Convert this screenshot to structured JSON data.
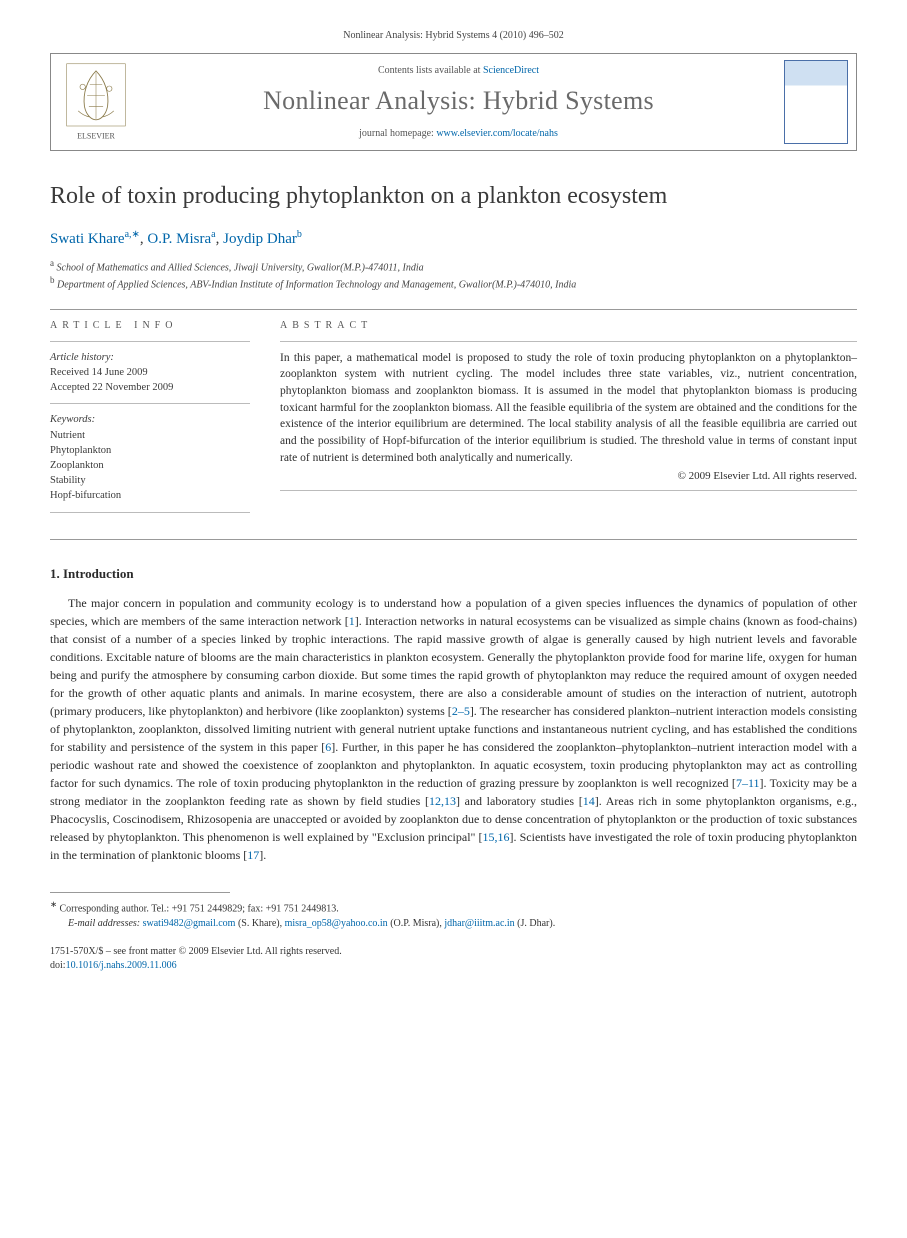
{
  "journal_ref": "Nonlinear Analysis: Hybrid Systems 4 (2010) 496–502",
  "header": {
    "contents_prefix": "Contents lists available at ",
    "contents_link": "ScienceDirect",
    "journal_title": "Nonlinear Analysis: Hybrid Systems",
    "homepage_prefix": "journal homepage: ",
    "homepage_link": "www.elsevier.com/locate/nahs",
    "publisher_name": "ELSEVIER"
  },
  "article": {
    "title": "Role of toxin producing phytoplankton on a plankton ecosystem",
    "authors_html": "Swati Khare",
    "author1": {
      "name": "Swati Khare",
      "marks": "a,∗"
    },
    "author2": {
      "name": "O.P. Misra",
      "marks": "a"
    },
    "author3": {
      "name": "Joydip Dhar",
      "marks": "b"
    },
    "affiliations": {
      "a": "School of Mathematics and Allied Sciences, Jiwaji University, Gwalior(M.P.)-474011, India",
      "b": "Department of Applied Sciences, ABV-Indian Institute of Information Technology and Management, Gwalior(M.P.)-474010, India"
    }
  },
  "info": {
    "heading": "article info",
    "history_label": "Article history:",
    "received": "Received 14 June 2009",
    "accepted": "Accepted 22 November 2009",
    "keywords_label": "Keywords:",
    "keywords": [
      "Nutrient",
      "Phytoplankton",
      "Zooplankton",
      "Stability",
      "Hopf-bifurcation"
    ]
  },
  "abstract": {
    "heading": "abstract",
    "text": "In this paper, a mathematical model is proposed to study the role of toxin producing phytoplankton on a phytoplankton–zooplankton system with nutrient cycling. The model includes three state variables, viz., nutrient concentration, phytoplankton biomass and zooplankton biomass. It is assumed in the model that phytoplankton biomass is producing toxicant harmful for the zooplankton biomass. All the feasible equilibria of the system are obtained and the conditions for the existence of the interior equilibrium are determined. The local stability analysis of all the feasible equilibria are carried out and the possibility of Hopf-bifurcation of the interior equilibrium is studied. The threshold value in terms of constant input rate of nutrient is determined both analytically and numerically.",
    "copyright": "© 2009 Elsevier Ltd. All rights reserved."
  },
  "section1": {
    "number_title": "1.  Introduction",
    "paragraph": "The major concern in population and community ecology is to understand how a population of a given species influences the dynamics of population of other species, which are members of the same interaction network [1]. Interaction networks in natural ecosystems can be visualized as simple chains (known as food-chains) that consist of a number of a species linked by trophic interactions. The rapid massive growth of algae is generally caused by high nutrient levels and favorable conditions. Excitable nature of blooms are the main characteristics in plankton ecosystem. Generally the phytoplankton provide food for marine life, oxygen for human being and purify the atmosphere by consuming carbon dioxide. But some times the rapid growth of phytoplankton may reduce the required amount of oxygen needed for the growth of other aquatic plants and animals. In marine ecosystem, there are also a considerable amount of studies on the interaction of nutrient, autotroph (primary producers, like phytoplankton) and herbivore (like zooplankton) systems [2–5]. The researcher has considered plankton–nutrient interaction models consisting of phytoplankton, zooplankton, dissolved limiting nutrient with general nutrient uptake functions and instantaneous nutrient cycling, and has established the conditions for stability and persistence of the system in this paper [6]. Further, in this paper he has considered the zooplankton–phytoplankton–nutrient interaction model with a periodic washout rate and showed the coexistence of zooplankton and phytoplankton. In aquatic ecosystem, toxin producing phytoplankton may act as controlling factor for such dynamics. The role of toxin producing phytoplankton in the reduction of grazing pressure by zooplankton is well recognized [7–11]. Toxicity may be a strong mediator in the zooplankton feeding rate as shown by field studies [12,13] and laboratory studies [14]. Areas rich in some phytoplankton organisms, e.g., Phacocyslis, Coscinodisem, Rhizosopenia are unaccepted or avoided by zooplankton due to dense concentration of phytoplankton or the production of toxic substances released by phytoplankton. This phenomenon is well explained by \"Exclusion principal\" [15,16]. Scientists have investigated the role of toxin producing phytoplankton in the termination of planktonic blooms [17].",
    "refs": [
      "1",
      "2–5",
      "6",
      "7–11",
      "12",
      "13",
      "14",
      "15",
      "16",
      "17"
    ]
  },
  "footnote": {
    "corr": "Corresponding author. Tel.: +91 751 2449829; fax: +91 751 2449813.",
    "email_label": "E-mail addresses:",
    "emails": [
      {
        "addr": "swati9482@gmail.com",
        "who": "(S. Khare)"
      },
      {
        "addr": "misra_op58@yahoo.co.in",
        "who": "(O.P. Misra)"
      },
      {
        "addr": "jdhar@iiitm.ac.in",
        "who": "(J. Dhar)."
      }
    ]
  },
  "bottom": {
    "issn_line": "1751-570X/$ – see front matter © 2009 Elsevier Ltd. All rights reserved.",
    "doi_label": "doi:",
    "doi": "10.1016/j.nahs.2009.11.006"
  },
  "colors": {
    "link": "#0066aa",
    "text": "#2a2a2a",
    "muted": "#6a6a6a",
    "rule": "#999999"
  }
}
